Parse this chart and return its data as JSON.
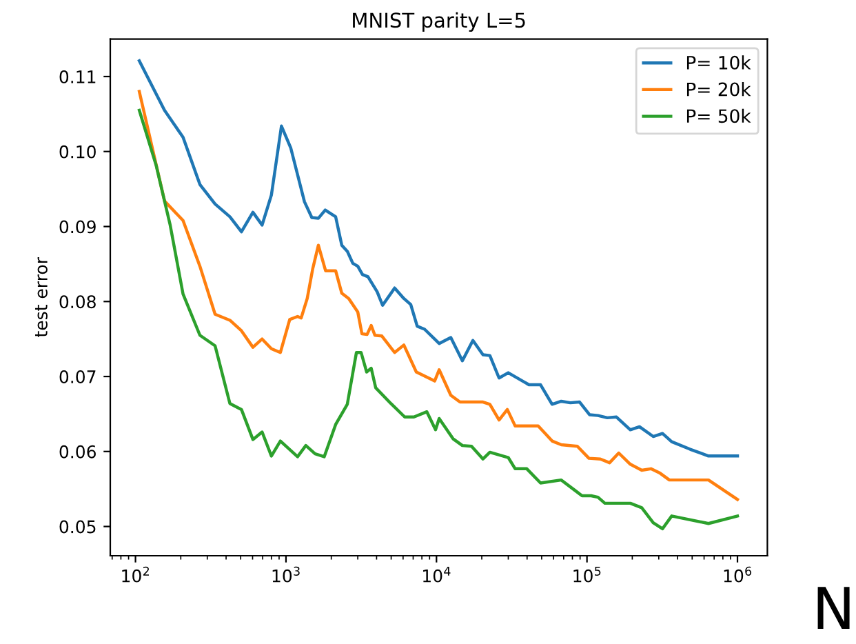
{
  "chart_data": {
    "type": "line",
    "title": "MNIST parity L=5",
    "ylabel": "test error",
    "log": "x",
    "legend": "top right",
    "grid": false,
    "marker": "none",
    "line_style": "solid",
    "xlim": [
      68,
      1580000
    ],
    "xticks": [
      {
        "value": 100,
        "label": "10$^{2}$"
      },
      {
        "value": 1000,
        "label": "10$^{3}$"
      },
      {
        "value": 10000,
        "label": "10$^{4}$"
      },
      {
        "value": 100000,
        "label": "10$^{5}$"
      },
      {
        "value": 1000000,
        "label": "10$^{6}$"
      }
    ],
    "ylim": [
      0.0461,
      0.115
    ],
    "yticks": [
      0.05,
      0.06,
      0.07,
      0.08,
      0.09,
      {
        "value": 0.1,
        "label": "0.10"
      },
      0.11
    ],
    "annotations": [
      "N"
    ],
    "series": [
      {
        "name": "P= 10k",
        "color": "#1f77b4",
        "x": [
          106,
          156,
          207,
          268,
          338,
          424,
          506,
          603,
          694,
          800,
          933,
          1075,
          1327,
          1485,
          1641,
          1823,
          2138,
          2349,
          2555,
          2780,
          3000,
          3222,
          3506,
          4034,
          4385,
          5272,
          6072,
          6745,
          7447,
          8337,
          10420,
          12450,
          14860,
          17460,
          20370,
          22630,
          26060,
          29980,
          41170,
          49170,
          58650,
          67490,
          77570,
          89330,
          104200,
          118300,
          136400,
          157000,
          194100,
          223300,
          275500,
          317600,
          365600,
          484500,
          641500,
          1000000
        ],
        "values": [
          0.1121,
          0.1055,
          0.1019,
          0.0956,
          0.093,
          0.0913,
          0.0893,
          0.0919,
          0.0902,
          0.0942,
          0.1034,
          0.1005,
          0.0933,
          0.0912,
          0.0911,
          0.0922,
          0.0913,
          0.0875,
          0.0867,
          0.0851,
          0.0847,
          0.0836,
          0.0833,
          0.0813,
          0.0795,
          0.0818,
          0.0804,
          0.0796,
          0.0767,
          0.0763,
          0.0744,
          0.0752,
          0.0721,
          0.0748,
          0.0729,
          0.0728,
          0.0698,
          0.0705,
          0.0689,
          0.0689,
          0.0663,
          0.0667,
          0.0665,
          0.0666,
          0.0649,
          0.0648,
          0.0645,
          0.0646,
          0.0629,
          0.0633,
          0.062,
          0.0624,
          0.0613,
          0.0603,
          0.0594,
          0.0594
        ]
      },
      {
        "name": "P= 20k",
        "color": "#ff7f0e",
        "x": [
          106,
          156,
          207,
          268,
          338,
          424,
          506,
          603,
          694,
          800,
          918,
          1059,
          1194,
          1262,
          1384,
          1507,
          1641,
          1833,
          2138,
          2349,
          2611,
          3000,
          3197,
          3457,
          3684,
          3897,
          4337,
          5272,
          6072,
          7345,
          9726,
          10420,
          12450,
          14320,
          20370,
          22630,
          26060,
          29560,
          33340,
          47420,
          58650,
          67490,
          86300,
          103000,
          122700,
          141300,
          162600,
          194100,
          231200,
          266100,
          306300,
          352800,
          641500,
          1000000
        ],
        "values": [
          0.108,
          0.0934,
          0.0908,
          0.0847,
          0.0783,
          0.0775,
          0.0761,
          0.0739,
          0.075,
          0.0737,
          0.0732,
          0.0776,
          0.078,
          0.0778,
          0.0804,
          0.0844,
          0.0875,
          0.0841,
          0.0841,
          0.0811,
          0.0804,
          0.0786,
          0.0757,
          0.0756,
          0.0768,
          0.0755,
          0.0754,
          0.0732,
          0.0742,
          0.0706,
          0.0694,
          0.0709,
          0.0675,
          0.0666,
          0.0666,
          0.0663,
          0.0642,
          0.0656,
          0.0634,
          0.0634,
          0.0614,
          0.0609,
          0.0607,
          0.0591,
          0.059,
          0.0585,
          0.0598,
          0.0583,
          0.0575,
          0.0577,
          0.0571,
          0.0562,
          0.0562,
          0.0536
        ]
      },
      {
        "name": "P= 50k",
        "color": "#2ca02c",
        "x": [
          106,
          137,
          170,
          207,
          268,
          338,
          424,
          506,
          603,
          694,
          800,
          918,
          1194,
          1355,
          1561,
          1795,
          2138,
          2555,
          2938,
          3157,
          3437,
          3684,
          3945,
          4977,
          6152,
          7080,
          8630,
          9860,
          10420,
          12880,
          14860,
          17100,
          20370,
          22630,
          29980,
          33340,
          39810,
          49170,
          67490,
          83400,
          92700,
          106600,
          118300,
          131500,
          194100,
          231200,
          275500,
          317600,
          365600,
          641500,
          1000000
        ],
        "values": [
          0.1055,
          0.0982,
          0.0902,
          0.081,
          0.0755,
          0.0741,
          0.0664,
          0.0656,
          0.0616,
          0.0626,
          0.0594,
          0.0614,
          0.0593,
          0.0608,
          0.0597,
          0.0593,
          0.0636,
          0.0663,
          0.0732,
          0.0732,
          0.0706,
          0.0711,
          0.0685,
          0.0664,
          0.0646,
          0.0646,
          0.0653,
          0.0629,
          0.0644,
          0.0617,
          0.0608,
          0.0607,
          0.059,
          0.0599,
          0.0592,
          0.0577,
          0.0577,
          0.0558,
          0.0562,
          0.0548,
          0.0541,
          0.0541,
          0.0539,
          0.0531,
          0.0531,
          0.0525,
          0.0505,
          0.0497,
          0.0514,
          0.0504,
          0.0514
        ]
      }
    ]
  }
}
